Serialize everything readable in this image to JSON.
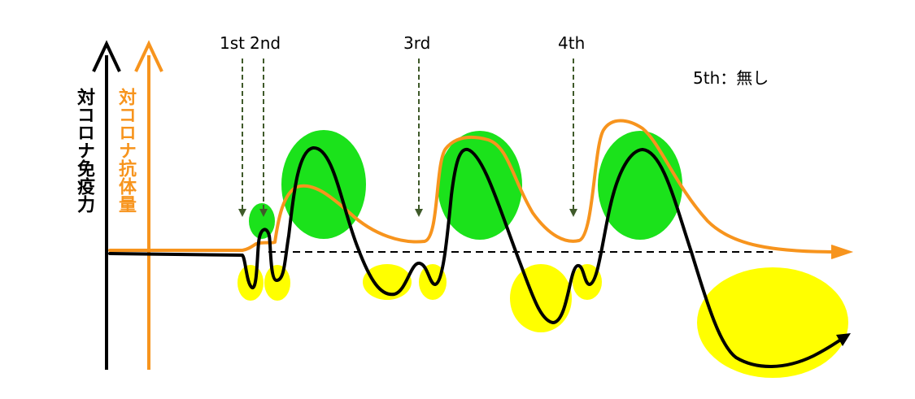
{
  "labels": {
    "immunity_axis": "対コロナ免疫力",
    "antibody_axis": "対コロナ抗体量",
    "dose_1": "1st",
    "dose_2": "2nd",
    "dose_3": "3rd",
    "dose_4": "4th",
    "dose_5": "5th：無し"
  },
  "colors": {
    "immunity": "#000000",
    "antibody": "#f7941d",
    "high_zone": "#1be21b",
    "low_zone": "#ffff00",
    "dose_arrow": "#3f5a2a",
    "baseline": "#000000"
  }
}
